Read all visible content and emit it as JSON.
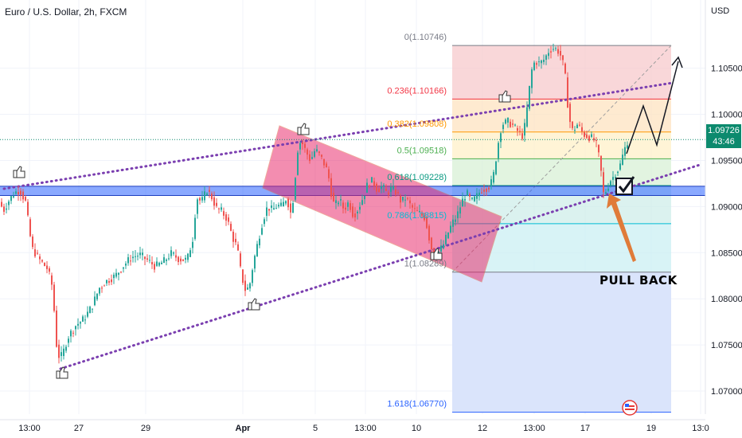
{
  "header": {
    "title": "Euro / U.S. Dollar, 2h, FXCM",
    "currency": "USD"
  },
  "price_badge": {
    "price": "1.09726",
    "countdown": "43:46"
  },
  "annotation": {
    "pullback_label": "PULL BACK"
  },
  "colors": {
    "bull": "#26a69a",
    "bear": "#ef5350",
    "channel": "#7b3fb0",
    "support_band": "#2962ff",
    "flag": "#e91e63"
  },
  "chart_data": {
    "type": "candlestick",
    "title": "Euro / U.S. Dollar, 2h, FXCM",
    "ylabel": "USD",
    "ylim": [
      1.0675,
      1.1092
    ],
    "y_ticks": [
      "1.10500",
      "1.10000",
      "1.09500",
      "1.09000",
      "1.08500",
      "1.08000",
      "1.07500",
      "1.07000"
    ],
    "x_ticks": [
      "13:00",
      "27",
      "29",
      "Apr",
      "5",
      "13:00",
      "10",
      "12",
      "13:00",
      "17",
      "19",
      "13:0"
    ],
    "current_price": 1.09726,
    "fib_retracement": [
      {
        "label": "0(1.10746)",
        "level": 1.10746,
        "color": "#787b86"
      },
      {
        "label": "0.236(1.10166)",
        "level": 1.10166,
        "color": "#f23645"
      },
      {
        "label": "0.382(1.09808)",
        "level": 1.09808,
        "color": "#ff9800"
      },
      {
        "label": "0.5(1.09518)",
        "level": 1.09518,
        "color": "#4caf50"
      },
      {
        "label": "0.618(1.09228)",
        "level": 1.09228,
        "color": "#089981"
      },
      {
        "label": "0.786(1.08815)",
        "level": 1.08815,
        "color": "#00bcd4"
      },
      {
        "label": "1(1.08289)",
        "level": 1.08289,
        "color": "#787b86"
      },
      {
        "label": "1.618(1.06770)",
        "level": 1.0677,
        "color": "#2962ff"
      }
    ],
    "support_zone": [
      1.0912,
      1.0922
    ],
    "price_path": [
      [
        0,
        1.0905
      ],
      [
        4,
        1.0895
      ],
      [
        10,
        1.0905
      ],
      [
        18,
        1.0915
      ],
      [
        25,
        1.0918
      ],
      [
        32,
        1.0905
      ],
      [
        40,
        1.0855
      ],
      [
        50,
        1.0842
      ],
      [
        60,
        1.0832
      ],
      [
        66,
        1.0812
      ],
      [
        72,
        1.0738
      ],
      [
        78,
        1.0738
      ],
      [
        85,
        1.0758
      ],
      [
        95,
        1.0771
      ],
      [
        105,
        1.0778
      ],
      [
        115,
        1.0791
      ],
      [
        125,
        1.0812
      ],
      [
        135,
        1.082
      ],
      [
        145,
        1.0825
      ],
      [
        155,
        1.0836
      ],
      [
        165,
        1.0845
      ],
      [
        175,
        1.0848
      ],
      [
        185,
        1.0842
      ],
      [
        195,
        1.0835
      ],
      [
        205,
        1.084
      ],
      [
        215,
        1.0849
      ],
      [
        225,
        1.0843
      ],
      [
        235,
        1.0842
      ],
      [
        242,
        1.0865
      ],
      [
        247,
        1.091
      ],
      [
        253,
        1.0905
      ],
      [
        260,
        1.0918
      ],
      [
        266,
        1.091
      ],
      [
        272,
        1.0898
      ],
      [
        278,
        1.0895
      ],
      [
        285,
        1.0887
      ],
      [
        292,
        1.0867
      ],
      [
        298,
        1.0855
      ],
      [
        303,
        1.0826
      ],
      [
        308,
        1.081
      ],
      [
        313,
        1.0812
      ],
      [
        318,
        1.0838
      ],
      [
        324,
        1.0862
      ],
      [
        330,
        1.0885
      ],
      [
        336,
        1.09
      ],
      [
        342,
        1.0896
      ],
      [
        348,
        1.0901
      ],
      [
        354,
        1.09
      ],
      [
        360,
        1.091
      ],
      [
        366,
        1.089
      ],
      [
        370,
        1.0925
      ],
      [
        374,
        1.0962
      ],
      [
        378,
        1.0972
      ],
      [
        384,
        1.096
      ],
      [
        390,
        1.095
      ],
      [
        396,
        1.0962
      ],
      [
        402,
        1.0955
      ],
      [
        408,
        1.0945
      ],
      [
        412,
        1.0936
      ],
      [
        416,
        1.0915
      ],
      [
        420,
        1.09
      ],
      [
        426,
        1.0908
      ],
      [
        432,
        1.0897
      ],
      [
        438,
        1.0905
      ],
      [
        444,
        1.089
      ],
      [
        450,
        1.0898
      ],
      [
        456,
        1.091
      ],
      [
        462,
        1.0925
      ],
      [
        468,
        1.0928
      ],
      [
        474,
        1.0918
      ],
      [
        480,
        1.0922
      ],
      [
        486,
        1.0914
      ],
      [
        492,
        1.092
      ],
      [
        498,
        1.0915
      ],
      [
        504,
        1.0905
      ],
      [
        510,
        1.091
      ],
      [
        516,
        1.09
      ],
      [
        522,
        1.0895
      ],
      [
        528,
        1.0892
      ],
      [
        534,
        1.0888
      ],
      [
        538,
        1.087
      ],
      [
        542,
        1.0855
      ],
      [
        546,
        1.0843
      ],
      [
        550,
        1.085
      ],
      [
        556,
        1.0857
      ],
      [
        562,
        1.087
      ],
      [
        568,
        1.0882
      ],
      [
        574,
        1.089
      ],
      [
        580,
        1.0905
      ],
      [
        586,
        1.0915
      ],
      [
        592,
        1.0905
      ],
      [
        598,
        1.091
      ],
      [
        604,
        1.0918
      ],
      [
        610,
        1.092
      ],
      [
        616,
        1.0923
      ],
      [
        620,
        1.0935
      ],
      [
        624,
        1.0958
      ],
      [
        628,
        1.0982
      ],
      [
        632,
        1.099
      ],
      [
        638,
        1.0992
      ],
      [
        644,
        1.0988
      ],
      [
        650,
        1.0982
      ],
      [
        656,
        1.0977
      ],
      [
        660,
        1.099
      ],
      [
        664,
        1.1022
      ],
      [
        668,
        1.1048
      ],
      [
        672,
        1.1058
      ],
      [
        678,
        1.1055
      ],
      [
        684,
        1.106
      ],
      [
        690,
        1.107
      ],
      [
        696,
        1.1072
      ],
      [
        702,
        1.1068
      ],
      [
        706,
        1.106
      ],
      [
        710,
        1.104
      ],
      [
        714,
        1.1002
      ],
      [
        718,
        1.0982
      ],
      [
        722,
        1.0985
      ],
      [
        726,
        1.099
      ],
      [
        730,
        1.0982
      ],
      [
        734,
        1.0978
      ],
      [
        738,
        1.0976
      ],
      [
        742,
        1.0975
      ],
      [
        746,
        1.0972
      ],
      [
        750,
        1.0965
      ],
      [
        754,
        1.0945
      ],
      [
        758,
        1.0914
      ],
      [
        762,
        1.0918
      ],
      [
        766,
        1.0928
      ],
      [
        770,
        1.0932
      ],
      [
        774,
        1.0938
      ],
      [
        778,
        1.0942
      ],
      [
        782,
        1.0955
      ],
      [
        786,
        1.0966
      ],
      [
        789,
        1.0973
      ]
    ]
  }
}
